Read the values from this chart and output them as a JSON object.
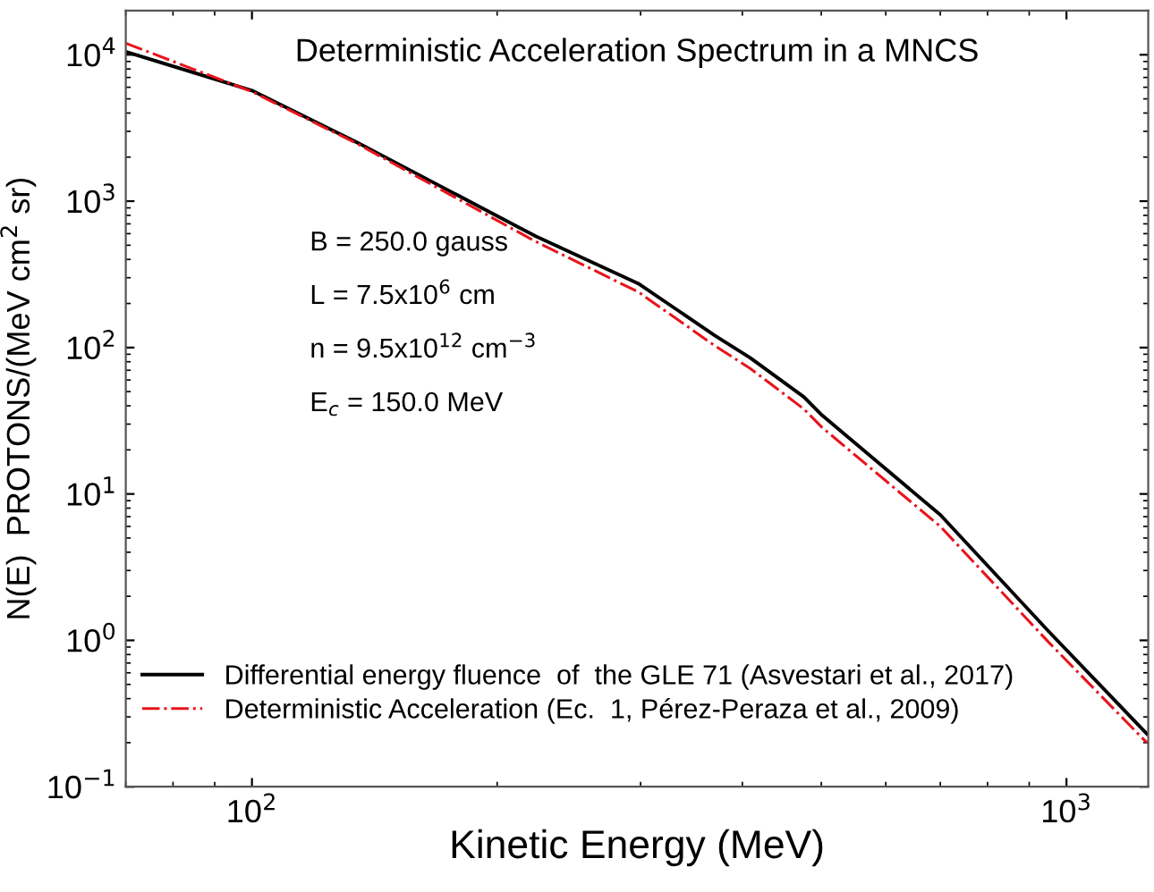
{
  "chart_data": {
    "type": "line",
    "title": "Deterministic Acceleration Spectrum in a MNCS",
    "xlabel": "Kinetic Energy (MeV)",
    "ylabel": "N(E)  PROTONS/(MeV cm$^{2}$ sr)",
    "log": "xy",
    "xlim": [
      70,
      1260
    ],
    "ylim": [
      0.1,
      20000
    ],
    "xticks": [
      {
        "value": 100,
        "label": "10$^{2}$"
      },
      {
        "value": 1000,
        "label": "10$^{3}$"
      }
    ],
    "yticks": [
      {
        "value": 0.1,
        "label": "10$^{−1}$"
      },
      {
        "value": 1,
        "label": "10$^{0}$"
      },
      {
        "value": 10,
        "label": "10$^{1}$"
      },
      {
        "value": 100,
        "label": "10$^{2}$"
      },
      {
        "value": 1000,
        "label": "10$^{3}$"
      },
      {
        "value": 10000,
        "label": "10$^{4}$"
      }
    ],
    "grid": false,
    "legend": "bottom left",
    "annotations": [
      "B = 250.0 gauss",
      "L = 7.5x10$^{6}$ cm",
      "n = 9.5x10$^{12}$ cm$^{−3}$",
      "E$_{c}$ = 150.0 MeV"
    ],
    "x": [
      70,
      100,
      135,
      223,
      298,
      370,
      409,
      476,
      501,
      700,
      951,
      1255
    ],
    "series": [
      {
        "name": "Differential energy fluence  of  the GLE 71 (Asvestari et al., 2017)",
        "color": "#000000",
        "line_style": "solid",
        "values": [
          10500,
          5700,
          2500,
          576,
          274,
          121,
          85,
          46,
          34.5,
          7.2,
          1.15,
          0.23
        ]
      },
      {
        "name": "Deterministic Acceleration (Ec.  1, Pérez-Peraza et al., 2009)",
        "color": "#e8141b",
        "line_style": "dashdot",
        "values": [
          12000,
          5600,
          2450,
          530,
          240,
          103,
          72,
          38,
          28.5,
          6.0,
          0.97,
          0.2
        ]
      }
    ]
  }
}
